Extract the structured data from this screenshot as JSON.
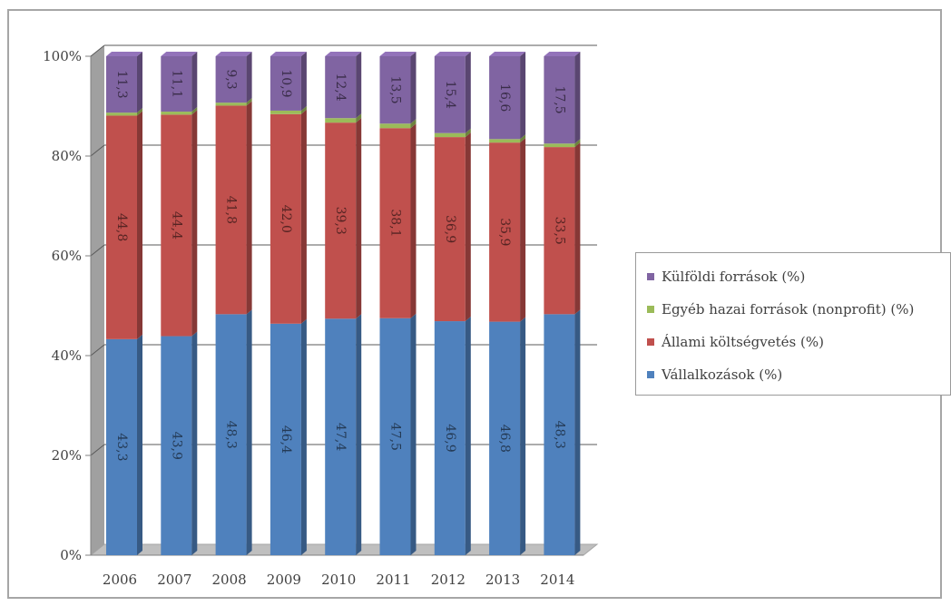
{
  "chart_data": {
    "type": "bar",
    "stacked": "percent",
    "categories": [
      "2006",
      "2007",
      "2008",
      "2009",
      "2010",
      "2011",
      "2012",
      "2013",
      "2014"
    ],
    "series": [
      {
        "name": "Vállalkozások (%)",
        "color": "#4f81bd",
        "values": [
          43.3,
          43.9,
          48.3,
          46.4,
          47.4,
          47.5,
          46.9,
          46.8,
          48.3
        ],
        "labels": [
          "43,3",
          "43,9",
          "48,3",
          "46,4",
          "47,4",
          "47,5",
          "46,9",
          "46,8",
          "48,3"
        ]
      },
      {
        "name": "Állami költségvetés (%)",
        "color": "#c0504d",
        "values": [
          44.8,
          44.4,
          41.8,
          42.0,
          39.3,
          38.1,
          36.9,
          35.9,
          33.5
        ],
        "labels": [
          "44,8",
          "44,4",
          "41,8",
          "42,0",
          "39,3",
          "38,1",
          "36,9",
          "35,9",
          "33,5"
        ]
      },
      {
        "name": "Egyéb hazai források (nonprofit) (%)",
        "color": "#9bbb59",
        "values": [
          0.6,
          0.6,
          0.6,
          0.7,
          0.9,
          0.9,
          0.8,
          0.7,
          0.7
        ],
        "labels": []
      },
      {
        "name": "Külföldi források (%)",
        "color": "#8064a2",
        "values": [
          11.3,
          11.1,
          9.3,
          10.9,
          12.4,
          13.5,
          15.4,
          16.6,
          17.5
        ],
        "labels": [
          "11,3",
          "11,1",
          "9,3",
          "10,9",
          "12,4",
          "13,5",
          "15,4",
          "16,6",
          "17,5"
        ]
      }
    ],
    "yticks": [
      "0%",
      "20%",
      "40%",
      "60%",
      "80%",
      "100%"
    ],
    "ylim": [
      0,
      100
    ],
    "grid": true,
    "legend_position": "right",
    "legend_order": [
      3,
      2,
      1,
      0
    ],
    "title": "",
    "xlabel": "",
    "ylabel": ""
  }
}
